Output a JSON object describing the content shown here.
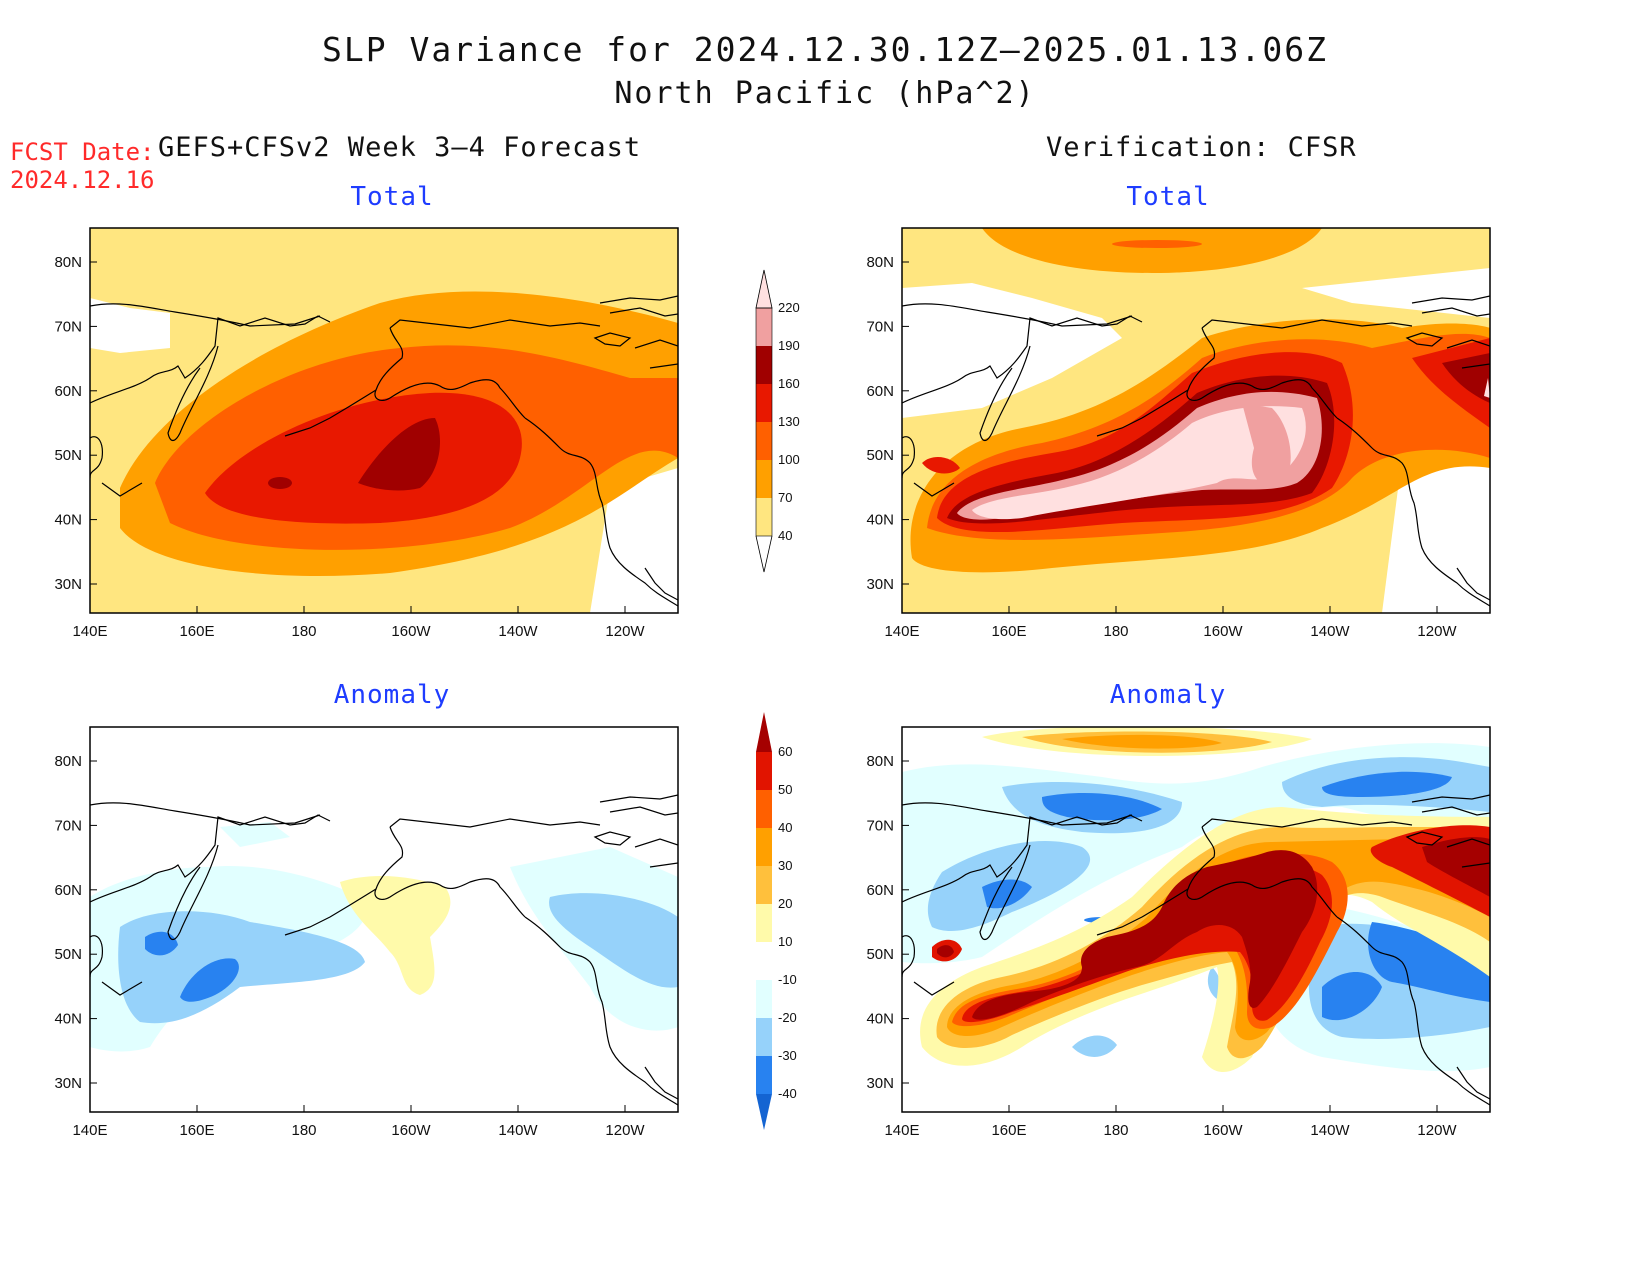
{
  "title": {
    "line1": "SLP Variance for 2024.12.30.12Z–2025.01.13.06Z",
    "line2": "North Pacific (hPa^2)"
  },
  "forecast_date": {
    "label": "FCST Date:",
    "value": "2024.12.16"
  },
  "columns": {
    "left": "GEFS+CFSv2 Week 3–4 Forecast",
    "right": "Verification: CFSR"
  },
  "panels": [
    {
      "id": "fcst-total",
      "label": "Total"
    },
    {
      "id": "verif-total",
      "label": "Total"
    },
    {
      "id": "fcst-anom",
      "label": "Anomaly"
    },
    {
      "id": "verif-anom",
      "label": "Anomaly"
    }
  ],
  "axes": {
    "x_ticks": [
      "140E",
      "160E",
      "180",
      "160W",
      "140W",
      "120W"
    ],
    "y_ticks": [
      "80N",
      "70N",
      "60N",
      "50N",
      "40N",
      "30N"
    ]
  },
  "colorbars": {
    "total": {
      "levels": [
        "40",
        "70",
        "100",
        "130",
        "160",
        "190",
        "220"
      ],
      "colors": [
        "#ffffff",
        "#ffe680",
        "#ffa000",
        "#ff6000",
        "#e81800",
        "#a00000",
        "#f0a0a0",
        "#ffe0e0"
      ]
    },
    "anomaly": {
      "levels": [
        "-40",
        "-30",
        "-20",
        "-10",
        "10",
        "20",
        "30",
        "40",
        "50",
        "60"
      ],
      "colors": [
        "#1464d2",
        "#2882f0",
        "#96d2fa",
        "#e1ffff",
        "#ffffff",
        "#fffaaa",
        "#ffc03c",
        "#ffa000",
        "#ff6000",
        "#e11400",
        "#a50000"
      ]
    }
  }
}
